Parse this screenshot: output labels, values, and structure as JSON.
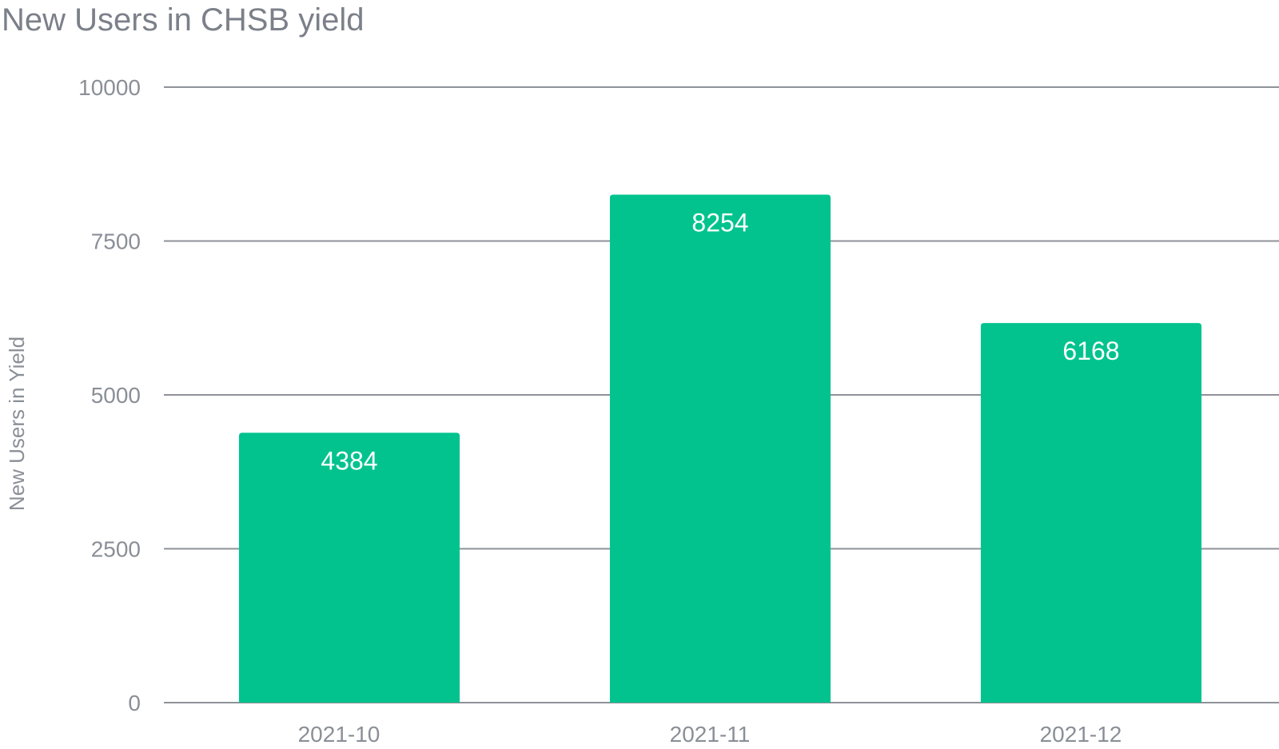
{
  "chart_data": {
    "type": "bar",
    "title": "New Users in CHSB yield",
    "xlabel": "",
    "ylabel": "New Users in Yield",
    "categories": [
      "2021-10",
      "2021-11",
      "2021-12"
    ],
    "values": [
      4384,
      8254,
      6168
    ],
    "data_labels": [
      "4384",
      "8254",
      "6168"
    ],
    "ylim": [
      0,
      10000
    ],
    "yticks": [
      0,
      2500,
      5000,
      7500,
      10000
    ],
    "ytick_labels": [
      "0",
      "2500",
      "5000",
      "7500",
      "10000"
    ],
    "grid": true,
    "legend": "none",
    "colors": {
      "bar": "#02c38e",
      "grid": "#8e9298",
      "text": "#8a8f97",
      "title": "#7b8089",
      "data_label": "#ffffff"
    }
  }
}
